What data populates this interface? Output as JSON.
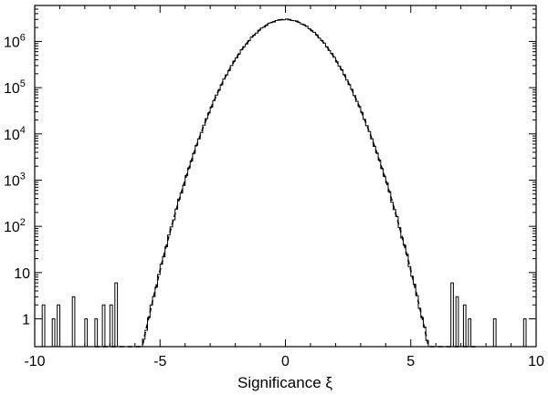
{
  "chart_data": {
    "type": "histogram",
    "xlabel": "Significance ξ",
    "ylabel": "",
    "title": "",
    "xlim": [
      -10,
      10
    ],
    "ylim": [
      0.25,
      6000000
    ],
    "yscale": "log",
    "grid": false,
    "x_ticks": [
      {
        "value": -10,
        "label": "-10"
      },
      {
        "value": -5,
        "label": "-5"
      },
      {
        "value": 0,
        "label": "0"
      },
      {
        "value": 5,
        "label": "5"
      },
      {
        "value": 10,
        "label": "10"
      }
    ],
    "y_ticks": [
      {
        "value": 1,
        "base": "1",
        "exp": ""
      },
      {
        "value": 10,
        "base": "10",
        "exp": ""
      },
      {
        "value": 100,
        "base": "10",
        "exp": "2"
      },
      {
        "value": 1000,
        "base": "10",
        "exp": "3"
      },
      {
        "value": 10000,
        "base": "10",
        "exp": "4"
      },
      {
        "value": 100000,
        "base": "10",
        "exp": "5"
      },
      {
        "value": 1000000,
        "base": "10",
        "exp": "6"
      }
    ],
    "gaussian_fit": {
      "style": "dashed",
      "peak": 3000000,
      "mean": 0,
      "sigma": 1
    },
    "histogram_outliers": [
      {
        "x": -9.65,
        "count": 2
      },
      {
        "x": -9.25,
        "count": 1
      },
      {
        "x": -9.05,
        "count": 2
      },
      {
        "x": -8.45,
        "count": 3
      },
      {
        "x": -8.0,
        "count": 1
      },
      {
        "x": -7.6,
        "count": 1
      },
      {
        "x": -7.25,
        "count": 2
      },
      {
        "x": -6.95,
        "count": 2
      },
      {
        "x": -6.8,
        "count": 6
      },
      {
        "x": 6.6,
        "count": 6
      },
      {
        "x": 6.85,
        "count": 3
      },
      {
        "x": 7.1,
        "count": 2
      },
      {
        "x": 7.3,
        "count": 1
      },
      {
        "x": 8.4,
        "count": 1
      },
      {
        "x": 9.5,
        "count": 1
      }
    ]
  }
}
